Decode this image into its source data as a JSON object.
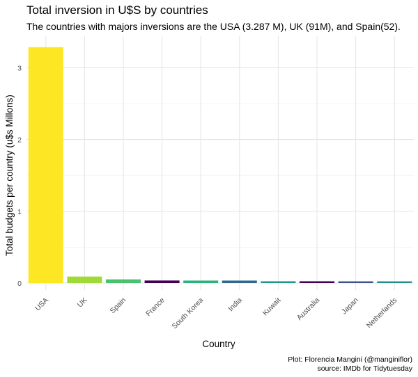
{
  "chart_data": {
    "type": "bar",
    "title": "Total inversion in U$S by countries",
    "subtitle": "The countries with majors inversions are the USA (3.287 M), UK (91M), and Spain(52).",
    "xlabel": "Country",
    "ylabel": "Total budgets per country (u$s Millons)",
    "categories": [
      "USA",
      "UK",
      "Spain",
      "France",
      "South Korea",
      "India",
      "Kuwait",
      "Australia",
      "Japan",
      "Netherlands"
    ],
    "values": [
      3.287,
      0.091,
      0.052,
      0.036,
      0.035,
      0.035,
      0.025,
      0.025,
      0.024,
      0.024
    ],
    "colors": [
      "#fde725",
      "#a0da39",
      "#4ac16d",
      "#440154",
      "#2db27d",
      "#31688e",
      "#1f9a8a",
      "#440154",
      "#3b528b",
      "#21918c"
    ],
    "y_ticks": [
      0,
      1,
      2,
      3
    ],
    "ylim": [
      0,
      3.42
    ],
    "grid": true,
    "legend": "none",
    "caption_lines": [
      "Plot: Florencia Mangini (@manginiflor)",
      "source: IMDb for Tidytuesday"
    ]
  }
}
